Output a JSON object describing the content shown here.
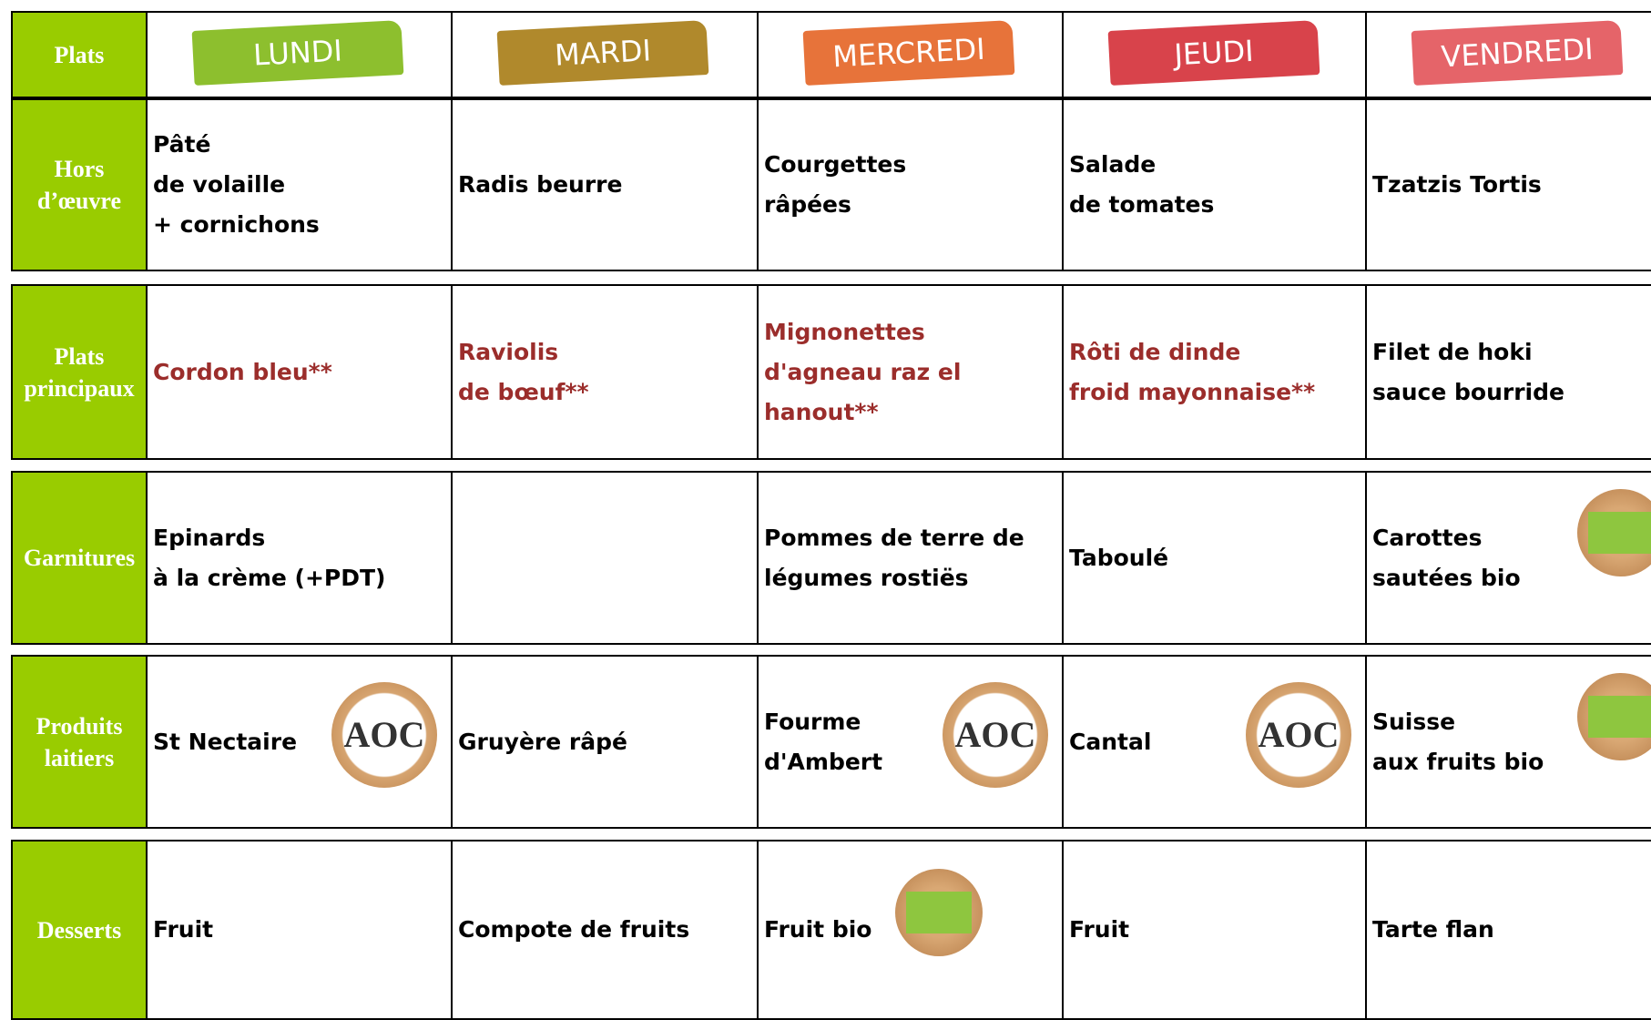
{
  "header": {
    "corner": "Plats",
    "days": [
      {
        "name": "LUNDI",
        "color": "#8dbf2e"
      },
      {
        "name": "MARDI",
        "color": "#b0892c"
      },
      {
        "name": "MERCREDI",
        "color": "#e7733a"
      },
      {
        "name": "JEUDI",
        "color": "#d8434b"
      },
      {
        "name": "VENDREDI",
        "color": "#e56469"
      }
    ]
  },
  "text_color": "#000000",
  "accent_color": "#9b2d2b",
  "label_color": "#99cc00",
  "rows": [
    {
      "label": "Hors d’œuvre",
      "cells": [
        {
          "lines": [
            "Pâté",
            "de volaille",
            "+ cornichons"
          ]
        },
        {
          "lines": [
            "Radis beurre"
          ]
        },
        {
          "lines": [
            "Courgettes",
            "râpées"
          ]
        },
        {
          "lines": [
            "Salade",
            "de tomates"
          ]
        },
        {
          "lines": [
            "Tzatzis Tortis"
          ]
        }
      ]
    },
    {
      "label": "Plats principaux",
      "cells": [
        {
          "lines": [
            "Cordon bleu**"
          ],
          "accent": true
        },
        {
          "lines": [
            "Raviolis",
            "de bœuf**"
          ],
          "accent": true
        },
        {
          "lines": [
            "Mignonettes",
            "d'agneau raz el",
            "hanout**"
          ],
          "accent": true
        },
        {
          "lines": [
            "Rôti de dinde",
            "froid mayonnaise**"
          ],
          "accent": true
        },
        {
          "lines": [
            "Filet de hoki",
            "sauce bourride"
          ]
        }
      ]
    },
    {
      "label": "Garnitures",
      "cells": [
        {
          "lines": [
            "Epinards",
            "à la crème (+PDT)"
          ]
        },
        {
          "lines": []
        },
        {
          "lines": [
            "Pommes de terre de",
            "légumes rostiës"
          ]
        },
        {
          "lines": [
            "Taboulé"
          ]
        },
        {
          "lines": [
            "Carottes",
            "sautées bio"
          ],
          "eco_logo": true
        }
      ]
    },
    {
      "label": "Produits laitiers",
      "cells": [
        {
          "lines": [
            "St Nectaire"
          ],
          "badge": "AOC"
        },
        {
          "lines": [
            "Gruyère râpé"
          ]
        },
        {
          "lines": [
            "Fourme",
            "d'Ambert"
          ],
          "badge": "AOC"
        },
        {
          "lines": [
            "Cantal"
          ],
          "badge": "AOC"
        },
        {
          "lines": [
            "Suisse",
            "aux fruits bio"
          ],
          "eco_logo": true
        }
      ]
    },
    {
      "label": "Desserts",
      "cells": [
        {
          "lines": [
            "Fruit"
          ]
        },
        {
          "lines": [
            "Compote de fruits"
          ]
        },
        {
          "lines": [
            "Fruit bio"
          ],
          "eco_logo": true
        },
        {
          "lines": [
            "Fruit"
          ]
        },
        {
          "lines": [
            "Tarte flan"
          ]
        }
      ]
    }
  ]
}
